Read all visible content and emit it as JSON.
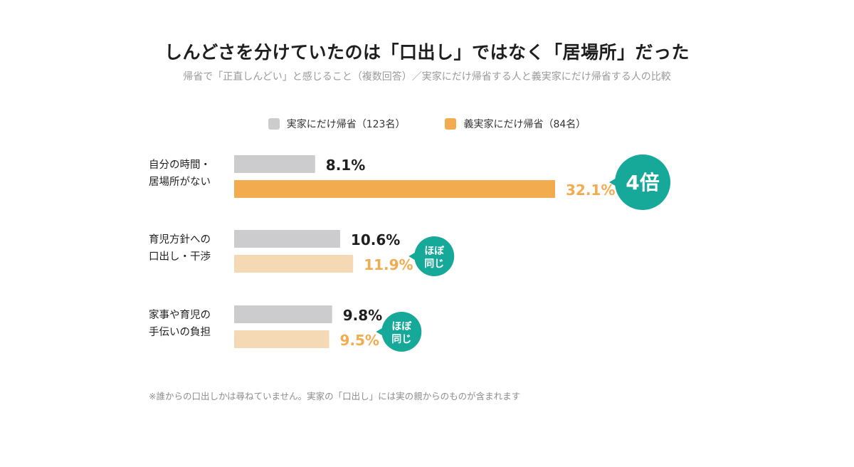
{
  "chart_data": {
    "type": "bar",
    "orientation": "horizontal",
    "title": "しんどさを分けていたのは「口出し」ではなく「居場所」だった",
    "subtitle": "帰省で「正直しんどい」と感じること（複数回答）／実家にだけ帰省する人と義実家にだけ帰省する人の比較",
    "categories": [
      [
        "自分の時間・",
        "居場所がない"
      ],
      [
        "育児方針への",
        "口出し・干渉"
      ],
      [
        "家事や育児の",
        "手伝いの負担"
      ]
    ],
    "series": [
      {
        "name": "実家にだけ帰省（123名）",
        "values": [
          8.1,
          10.6,
          9.8
        ],
        "labels": [
          "8.1%",
          "10.6%",
          "9.8%"
        ],
        "color": "#cccbcd",
        "label_color": "#1f1f1f"
      },
      {
        "name": "義実家にだけ帰省（84名）",
        "values": [
          32.1,
          11.9,
          9.5
        ],
        "labels": [
          "32.1%",
          "11.9%",
          "9.5%"
        ],
        "color": "#f2ac4f",
        "highlight": [
          true,
          false,
          false
        ],
        "muted_color": "#f5d8b4",
        "label_color": "#f2ac4f"
      }
    ],
    "annotations": [
      [
        "4倍"
      ],
      [
        "ほぼ",
        "同じ"
      ],
      [
        "ほぼ",
        "同じ"
      ]
    ],
    "annotation_color": "#16a898",
    "xlim": [
      0,
      33.5
    ],
    "grid": false,
    "legend_position": "top-center",
    "footnote": "※誰からの口出しかは尋ねていません。実家の「口出し」には実の親からのものが含まれます"
  }
}
